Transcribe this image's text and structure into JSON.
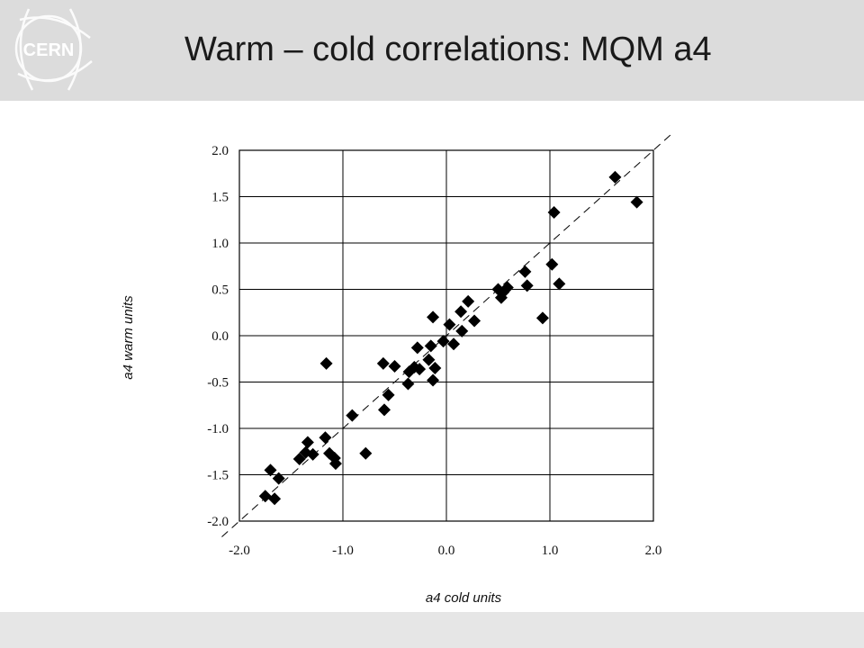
{
  "slide": {
    "title": "Warm – cold correlations: MQM a4",
    "logo_text": "CERN"
  },
  "chart_data": {
    "type": "scatter",
    "title": "",
    "xlabel": "a4 cold units",
    "ylabel": "a4 warm units",
    "xlim": [
      -2.0,
      2.0
    ],
    "ylim": [
      -2.0,
      2.0
    ],
    "xticks": [
      "-2.0",
      "-1.0",
      "0.0",
      "1.0",
      "2.0"
    ],
    "yticks": [
      "2.0",
      "1.5",
      "1.0",
      "0.5",
      "0.0",
      "-0.5",
      "-1.0",
      "-1.5",
      "-2.0"
    ],
    "grid": true,
    "reference_line": "y = x (dashed)",
    "marker": "diamond",
    "marker_color": "#000000",
    "series": [
      {
        "points": [
          [
            -1.75,
            -1.73
          ],
          [
            -1.7,
            -1.45
          ],
          [
            -1.66,
            -1.76
          ],
          [
            -1.62,
            -1.54
          ],
          [
            -1.42,
            -1.33
          ],
          [
            -1.36,
            -1.26
          ],
          [
            -1.34,
            -1.15
          ],
          [
            -1.29,
            -1.28
          ],
          [
            -1.17,
            -1.1
          ],
          [
            -1.16,
            -0.3
          ],
          [
            -1.13,
            -1.27
          ],
          [
            -1.08,
            -1.32
          ],
          [
            -1.07,
            -1.38
          ],
          [
            -0.91,
            -0.86
          ],
          [
            -0.78,
            -1.27
          ],
          [
            -0.61,
            -0.3
          ],
          [
            -0.6,
            -0.8
          ],
          [
            -0.56,
            -0.64
          ],
          [
            -0.5,
            -0.33
          ],
          [
            -0.37,
            -0.52
          ],
          [
            -0.36,
            -0.39
          ],
          [
            -0.31,
            -0.34
          ],
          [
            -0.28,
            -0.13
          ],
          [
            -0.26,
            -0.36
          ],
          [
            -0.17,
            -0.26
          ],
          [
            -0.15,
            -0.11
          ],
          [
            -0.13,
            0.2
          ],
          [
            -0.13,
            -0.48
          ],
          [
            -0.11,
            -0.35
          ],
          [
            -0.03,
            -0.06
          ],
          [
            0.03,
            0.12
          ],
          [
            0.07,
            -0.09
          ],
          [
            0.14,
            0.26
          ],
          [
            0.15,
            0.05
          ],
          [
            0.21,
            0.37
          ],
          [
            0.27,
            0.16
          ],
          [
            0.5,
            0.5
          ],
          [
            0.53,
            0.41
          ],
          [
            0.55,
            0.47
          ],
          [
            0.59,
            0.52
          ],
          [
            0.76,
            0.69
          ],
          [
            0.78,
            0.54
          ],
          [
            0.93,
            0.19
          ],
          [
            1.02,
            0.77
          ],
          [
            1.04,
            1.33
          ],
          [
            1.09,
            0.56
          ],
          [
            1.63,
            1.71
          ],
          [
            1.84,
            1.44
          ]
        ]
      }
    ]
  }
}
